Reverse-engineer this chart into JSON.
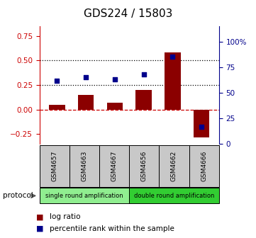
{
  "title": "GDS224 / 15803",
  "samples": [
    "GSM4657",
    "GSM4663",
    "GSM4667",
    "GSM4656",
    "GSM4662",
    "GSM4666"
  ],
  "log_ratio": [
    0.05,
    0.15,
    0.07,
    0.2,
    0.58,
    -0.28
  ],
  "percentile_rank": [
    62,
    65,
    63,
    68,
    85,
    17
  ],
  "ylim_left": [
    -0.35,
    0.85
  ],
  "ylim_right": [
    0,
    115
  ],
  "yticks_left": [
    -0.25,
    0.0,
    0.25,
    0.5,
    0.75
  ],
  "yticks_right": [
    0,
    25,
    50,
    75,
    100
  ],
  "bar_color": "#8B0000",
  "dot_color": "#00008B",
  "hline_color": "#CC0000",
  "dotted_lines": [
    0.25,
    0.5
  ],
  "protocol_single": "single round amplification",
  "protocol_double": "double round amplification",
  "protocol_label": "protocol",
  "legend_bar": "log ratio",
  "legend_dot": "percentile rank within the sample",
  "single_indices": [
    0,
    1,
    2
  ],
  "double_indices": [
    3,
    4,
    5
  ],
  "single_color": "#90EE90",
  "double_color": "#32CD32",
  "title_fontsize": 11,
  "tick_fontsize": 7.5
}
